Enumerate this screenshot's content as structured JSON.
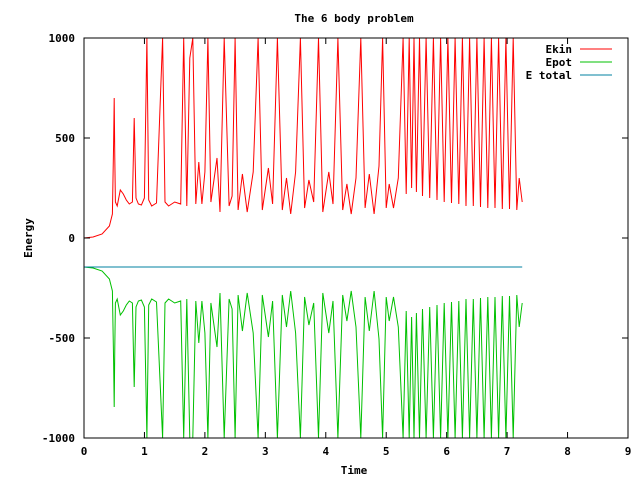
{
  "chart_data": {
    "type": "line",
    "title": "The 6 body problem",
    "xlabel": "Time",
    "ylabel": "Energy",
    "xlim": [
      0,
      9
    ],
    "ylim": [
      -1000,
      1000
    ],
    "xticks": [
      0,
      1,
      2,
      3,
      4,
      5,
      6,
      7,
      8,
      9
    ],
    "yticks": [
      -1000,
      -500,
      0,
      500,
      1000
    ],
    "grid": false,
    "legend": "top-right",
    "total_energy": -145,
    "series": [
      {
        "name": "Ekin",
        "color": "#ff0000",
        "points": [
          [
            0.0,
            0
          ],
          [
            0.15,
            5
          ],
          [
            0.3,
            20
          ],
          [
            0.42,
            60
          ],
          [
            0.47,
            120
          ],
          [
            0.48,
            300
          ],
          [
            0.49,
            470
          ],
          [
            0.5,
            700
          ],
          [
            0.51,
            400
          ],
          [
            0.52,
            180
          ],
          [
            0.55,
            160
          ],
          [
            0.6,
            240
          ],
          [
            0.65,
            220
          ],
          [
            0.7,
            190
          ],
          [
            0.75,
            170
          ],
          [
            0.8,
            180
          ],
          [
            0.83,
            600
          ],
          [
            0.86,
            200
          ],
          [
            0.9,
            170
          ],
          [
            0.95,
            165
          ],
          [
            1.0,
            200
          ],
          [
            1.04,
            1000
          ],
          [
            1.07,
            190
          ],
          [
            1.12,
            160
          ],
          [
            1.2,
            175
          ],
          [
            1.3,
            1000
          ],
          [
            1.34,
            180
          ],
          [
            1.4,
            160
          ],
          [
            1.5,
            180
          ],
          [
            1.6,
            170
          ],
          [
            1.65,
            1000
          ],
          [
            1.7,
            160
          ],
          [
            1.75,
            900
          ],
          [
            1.8,
            1000
          ],
          [
            1.85,
            170
          ],
          [
            1.9,
            380
          ],
          [
            1.95,
            170
          ],
          [
            2.0,
            330
          ],
          [
            2.05,
            1000
          ],
          [
            2.1,
            180
          ],
          [
            2.2,
            400
          ],
          [
            2.25,
            130
          ],
          [
            2.32,
            1000
          ],
          [
            2.4,
            160
          ],
          [
            2.45,
            210
          ],
          [
            2.5,
            1000
          ],
          [
            2.55,
            140
          ],
          [
            2.62,
            320
          ],
          [
            2.7,
            130
          ],
          [
            2.8,
            330
          ],
          [
            2.88,
            1000
          ],
          [
            2.95,
            140
          ],
          [
            3.05,
            350
          ],
          [
            3.12,
            170
          ],
          [
            3.2,
            1000
          ],
          [
            3.28,
            140
          ],
          [
            3.35,
            300
          ],
          [
            3.42,
            120
          ],
          [
            3.5,
            330
          ],
          [
            3.58,
            1000
          ],
          [
            3.65,
            150
          ],
          [
            3.72,
            290
          ],
          [
            3.8,
            180
          ],
          [
            3.88,
            1000
          ],
          [
            3.95,
            130
          ],
          [
            4.05,
            330
          ],
          [
            4.12,
            170
          ],
          [
            4.2,
            1000
          ],
          [
            4.28,
            140
          ],
          [
            4.35,
            270
          ],
          [
            4.42,
            120
          ],
          [
            4.5,
            300
          ],
          [
            4.58,
            1000
          ],
          [
            4.65,
            150
          ],
          [
            4.72,
            320
          ],
          [
            4.8,
            120
          ],
          [
            4.88,
            360
          ],
          [
            4.94,
            1000
          ],
          [
            5.0,
            150
          ],
          [
            5.05,
            270
          ],
          [
            5.12,
            150
          ],
          [
            5.2,
            300
          ],
          [
            5.28,
            1000
          ],
          [
            5.33,
            220
          ],
          [
            5.38,
            1000
          ],
          [
            5.42,
            250
          ],
          [
            5.46,
            1000
          ],
          [
            5.5,
            230
          ],
          [
            5.55,
            1000
          ],
          [
            5.6,
            210
          ],
          [
            5.66,
            1000
          ],
          [
            5.72,
            200
          ],
          [
            5.78,
            1000
          ],
          [
            5.84,
            190
          ],
          [
            5.9,
            1000
          ],
          [
            5.96,
            180
          ],
          [
            6.02,
            1000
          ],
          [
            6.08,
            175
          ],
          [
            6.14,
            1000
          ],
          [
            6.2,
            170
          ],
          [
            6.26,
            1000
          ],
          [
            6.32,
            160
          ],
          [
            6.38,
            1000
          ],
          [
            6.44,
            160
          ],
          [
            6.5,
            1000
          ],
          [
            6.56,
            155
          ],
          [
            6.62,
            1000
          ],
          [
            6.68,
            150
          ],
          [
            6.74,
            1000
          ],
          [
            6.8,
            150
          ],
          [
            6.86,
            1000
          ],
          [
            6.92,
            145
          ],
          [
            6.98,
            1000
          ],
          [
            7.04,
            145
          ],
          [
            7.1,
            1000
          ],
          [
            7.16,
            140
          ],
          [
            7.2,
            300
          ],
          [
            7.25,
            180
          ]
        ]
      },
      {
        "name": "Epot",
        "color": "#00c000",
        "points": [
          [
            0.0,
            -145
          ],
          [
            0.15,
            -150
          ],
          [
            0.3,
            -165
          ],
          [
            0.42,
            -205
          ],
          [
            0.47,
            -265
          ],
          [
            0.48,
            -445
          ],
          [
            0.49,
            -615
          ],
          [
            0.5,
            -845
          ],
          [
            0.51,
            -545
          ],
          [
            0.52,
            -325
          ],
          [
            0.55,
            -305
          ],
          [
            0.6,
            -385
          ],
          [
            0.65,
            -365
          ],
          [
            0.7,
            -335
          ],
          [
            0.75,
            -315
          ],
          [
            0.8,
            -325
          ],
          [
            0.83,
            -745
          ],
          [
            0.86,
            -345
          ],
          [
            0.9,
            -315
          ],
          [
            0.95,
            -310
          ],
          [
            1.0,
            -345
          ],
          [
            1.04,
            -1000
          ],
          [
            1.07,
            -335
          ],
          [
            1.12,
            -305
          ],
          [
            1.2,
            -320
          ],
          [
            1.3,
            -1000
          ],
          [
            1.34,
            -325
          ],
          [
            1.4,
            -305
          ],
          [
            1.5,
            -325
          ],
          [
            1.6,
            -315
          ],
          [
            1.65,
            -1000
          ],
          [
            1.7,
            -305
          ],
          [
            1.75,
            -1000
          ],
          [
            1.8,
            -1000
          ],
          [
            1.85,
            -315
          ],
          [
            1.9,
            -525
          ],
          [
            1.95,
            -315
          ],
          [
            2.0,
            -475
          ],
          [
            2.05,
            -1000
          ],
          [
            2.1,
            -325
          ],
          [
            2.2,
            -545
          ],
          [
            2.25,
            -275
          ],
          [
            2.32,
            -1000
          ],
          [
            2.4,
            -305
          ],
          [
            2.45,
            -355
          ],
          [
            2.5,
            -1000
          ],
          [
            2.55,
            -285
          ],
          [
            2.62,
            -465
          ],
          [
            2.7,
            -275
          ],
          [
            2.8,
            -475
          ],
          [
            2.88,
            -1000
          ],
          [
            2.95,
            -285
          ],
          [
            3.05,
            -495
          ],
          [
            3.12,
            -315
          ],
          [
            3.2,
            -1000
          ],
          [
            3.28,
            -285
          ],
          [
            3.35,
            -445
          ],
          [
            3.42,
            -265
          ],
          [
            3.5,
            -475
          ],
          [
            3.58,
            -1000
          ],
          [
            3.65,
            -295
          ],
          [
            3.72,
            -435
          ],
          [
            3.8,
            -325
          ],
          [
            3.88,
            -1000
          ],
          [
            3.95,
            -275
          ],
          [
            4.05,
            -475
          ],
          [
            4.12,
            -315
          ],
          [
            4.2,
            -1000
          ],
          [
            4.28,
            -285
          ],
          [
            4.35,
            -415
          ],
          [
            4.42,
            -265
          ],
          [
            4.5,
            -445
          ],
          [
            4.58,
            -1000
          ],
          [
            4.65,
            -295
          ],
          [
            4.72,
            -465
          ],
          [
            4.8,
            -265
          ],
          [
            4.88,
            -505
          ],
          [
            4.94,
            -1000
          ],
          [
            5.0,
            -295
          ],
          [
            5.05,
            -415
          ],
          [
            5.12,
            -295
          ],
          [
            5.2,
            -445
          ],
          [
            5.28,
            -1000
          ],
          [
            5.33,
            -365
          ],
          [
            5.38,
            -1000
          ],
          [
            5.42,
            -395
          ],
          [
            5.46,
            -1000
          ],
          [
            5.5,
            -375
          ],
          [
            5.55,
            -1000
          ],
          [
            5.6,
            -355
          ],
          [
            5.66,
            -1000
          ],
          [
            5.72,
            -345
          ],
          [
            5.78,
            -1000
          ],
          [
            5.84,
            -335
          ],
          [
            5.9,
            -1000
          ],
          [
            5.96,
            -325
          ],
          [
            6.02,
            -1000
          ],
          [
            6.08,
            -320
          ],
          [
            6.14,
            -1000
          ],
          [
            6.2,
            -315
          ],
          [
            6.26,
            -1000
          ],
          [
            6.32,
            -305
          ],
          [
            6.38,
            -1000
          ],
          [
            6.44,
            -305
          ],
          [
            6.5,
            -1000
          ],
          [
            6.56,
            -300
          ],
          [
            6.62,
            -1000
          ],
          [
            6.68,
            -295
          ],
          [
            6.74,
            -1000
          ],
          [
            6.8,
            -295
          ],
          [
            6.86,
            -1000
          ],
          [
            6.92,
            -290
          ],
          [
            6.98,
            -1000
          ],
          [
            7.04,
            -290
          ],
          [
            7.1,
            -1000
          ],
          [
            7.16,
            -285
          ],
          [
            7.2,
            -445
          ],
          [
            7.25,
            -325
          ]
        ]
      },
      {
        "name": "E total",
        "color": "#0080a0",
        "points": [
          [
            0.0,
            -145
          ],
          [
            7.25,
            -145
          ]
        ]
      }
    ]
  }
}
